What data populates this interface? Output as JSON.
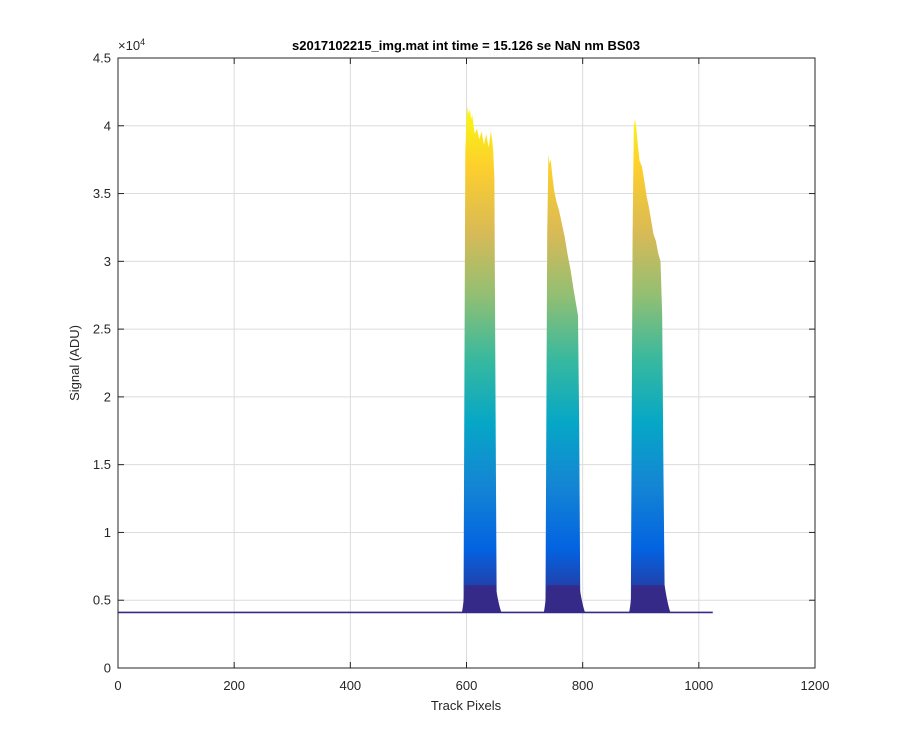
{
  "chart_data": {
    "type": "area",
    "title": "s2017102215_img.mat int time = 15.126 se  NaN nm BS03",
    "xlabel": "Track Pixels",
    "ylabel": "Signal (ADU)",
    "exponent_base": "×10",
    "exponent_power": "4",
    "xlim": [
      0,
      1200
    ],
    "ylim": [
      0,
      4.5
    ],
    "y_multiplier": 10000,
    "x_ticks": [
      0,
      200,
      400,
      600,
      800,
      1000,
      1200
    ],
    "x_tick_labels": [
      "0",
      "200",
      "400",
      "600",
      "800",
      "1000",
      "1200"
    ],
    "y_ticks": [
      0,
      0.5,
      1,
      1.5,
      2,
      2.5,
      3,
      3.5,
      4,
      4.5
    ],
    "y_tick_labels": [
      "0",
      "0.5",
      "1",
      "1.5",
      "2",
      "2.5",
      "3",
      "3.5",
      "4",
      "4.5"
    ],
    "grid": true,
    "colormap": [
      "#352a87",
      "#0363e1",
      "#1485d4",
      "#06a7c6",
      "#38b99e",
      "#92bf73",
      "#d9ba56",
      "#fcce2e",
      "#f9fb0e"
    ],
    "baseline_level": 0.41,
    "baseline_x": [
      0,
      1024
    ],
    "peaks": [
      {
        "x": [
          595,
          598,
          600,
          602,
          604,
          606,
          608,
          610,
          614,
          618,
          622,
          626,
          630,
          634,
          638,
          642,
          644,
          646,
          648,
          650,
          652
        ],
        "top": [
          0.6,
          3.8,
          4.06,
          4.14,
          4.09,
          4.12,
          4.05,
          4.08,
          3.94,
          3.98,
          3.9,
          3.96,
          3.86,
          3.94,
          3.84,
          3.96,
          3.9,
          3.82,
          3.6,
          2.0,
          0.45
        ]
      },
      {
        "x": [
          736,
          739,
          741,
          743,
          745,
          748,
          751,
          755,
          759,
          764,
          769,
          774,
          779,
          784,
          788,
          792,
          794,
          796
        ],
        "top": [
          0.5,
          3.2,
          3.79,
          3.72,
          3.75,
          3.62,
          3.52,
          3.44,
          3.38,
          3.28,
          3.18,
          3.05,
          2.94,
          2.8,
          2.7,
          2.6,
          1.8,
          0.45
        ]
      },
      {
        "x": [
          883,
          886,
          888,
          890,
          892,
          895,
          898,
          902,
          906,
          910,
          914,
          918,
          922,
          926,
          930,
          934,
          937,
          939,
          941,
          943
        ],
        "top": [
          0.55,
          3.2,
          3.98,
          4.05,
          4.0,
          3.86,
          3.74,
          3.7,
          3.6,
          3.48,
          3.4,
          3.3,
          3.2,
          3.15,
          3.06,
          3.0,
          2.6,
          1.5,
          0.6,
          0.44
        ]
      }
    ]
  }
}
